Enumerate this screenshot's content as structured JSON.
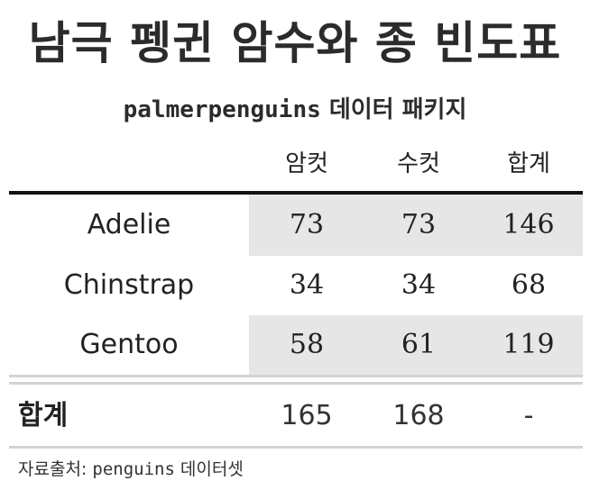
{
  "title": "남극 펭귄 암수와 종 빈도표",
  "subtitle": {
    "code": "palmerpenguins",
    "text": " 데이터 패키지"
  },
  "columns": [
    "암컷",
    "수컷",
    "합계"
  ],
  "rows": [
    {
      "label": "Adelie",
      "values": [
        "73",
        "73",
        "146"
      ]
    },
    {
      "label": "Chinstrap",
      "values": [
        "34",
        "34",
        "68"
      ]
    },
    {
      "label": "Gentoo",
      "values": [
        "58",
        "61",
        "119"
      ]
    }
  ],
  "total": {
    "label": "합계",
    "values": [
      "165",
      "168",
      "-"
    ]
  },
  "source": {
    "prefix": "자료출처: ",
    "code": "penguins",
    "suffix": " 데이터셋"
  },
  "colors": {
    "band": "#e6e6e6",
    "rule": "#111111",
    "grey_rule": "#d3d3d3"
  }
}
